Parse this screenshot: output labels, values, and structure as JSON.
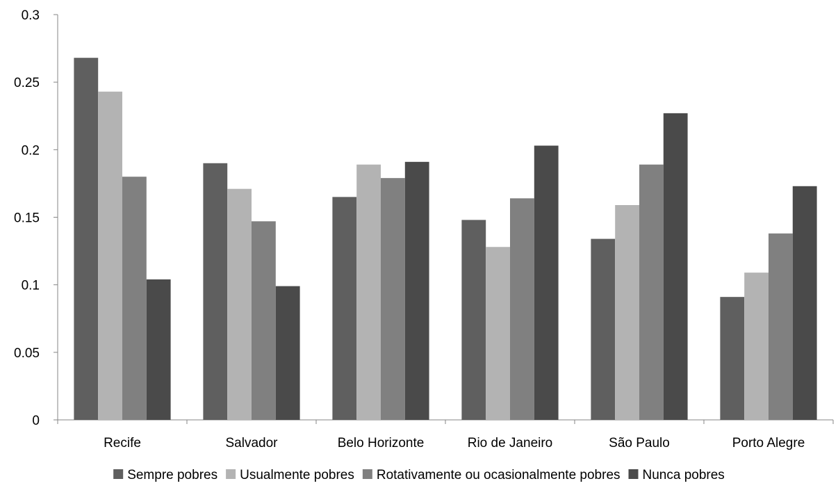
{
  "chart_data": {
    "type": "bar",
    "categories": [
      "Recife",
      "Salvador",
      "Belo Horizonte",
      "Rio de Janeiro",
      "São Paulo",
      "Porto Alegre"
    ],
    "series": [
      {
        "name": "Sempre pobres",
        "color": "#5f5f5f",
        "values": [
          0.268,
          0.19,
          0.165,
          0.148,
          0.134,
          0.091
        ]
      },
      {
        "name": "Usualmente pobres",
        "color": "#b3b3b3",
        "values": [
          0.243,
          0.171,
          0.189,
          0.128,
          0.159,
          0.109
        ]
      },
      {
        "name": "Rotativamente ou ocasionalmente pobres",
        "color": "#808080",
        "values": [
          0.18,
          0.147,
          0.179,
          0.164,
          0.189,
          0.138
        ]
      },
      {
        "name": "Nunca pobres",
        "color": "#4a4a4a",
        "values": [
          0.104,
          0.099,
          0.191,
          0.203,
          0.227,
          0.173
        ]
      }
    ],
    "y_ticks": [
      "0",
      "0.05",
      "0.1",
      "0.15",
      "0.2",
      "0.25",
      "0.3"
    ],
    "ylim": [
      0,
      0.3
    ],
    "grid": false,
    "legend_position": "bottom"
  }
}
